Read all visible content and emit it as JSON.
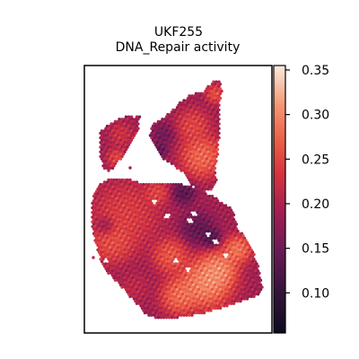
{
  "chart_data": {
    "type": "scatter",
    "subtype": "spatial-hex-map",
    "title": "UKF255",
    "subtitle": "DNA_Repair activity",
    "xlabel": "",
    "ylabel": "",
    "grid": false,
    "colormap": "rocket",
    "colorbar": {
      "range": [
        0.055,
        0.355
      ],
      "ticks": [
        0.1,
        0.15,
        0.2,
        0.25,
        0.3,
        0.35
      ],
      "tick_labels": [
        "0.10",
        "0.15",
        "0.20",
        "0.25",
        "0.30",
        "0.35"
      ],
      "placement": "right"
    },
    "value_range": [
      0.06,
      0.35
    ],
    "regions": [
      {
        "name": "upper-left lobe",
        "mean_value": 0.2
      },
      {
        "name": "top-right lobe",
        "mean_value": 0.24
      },
      {
        "name": "left body",
        "mean_value": 0.26
      },
      {
        "name": "lower-right hotspot",
        "mean_value": 0.33
      },
      {
        "name": "central seam",
        "mean_value": 0.13
      }
    ]
  },
  "colors": {
    "background": "#ffffff",
    "frame": "#000000",
    "low": "#0d0b1f",
    "high": "#faebdd"
  }
}
